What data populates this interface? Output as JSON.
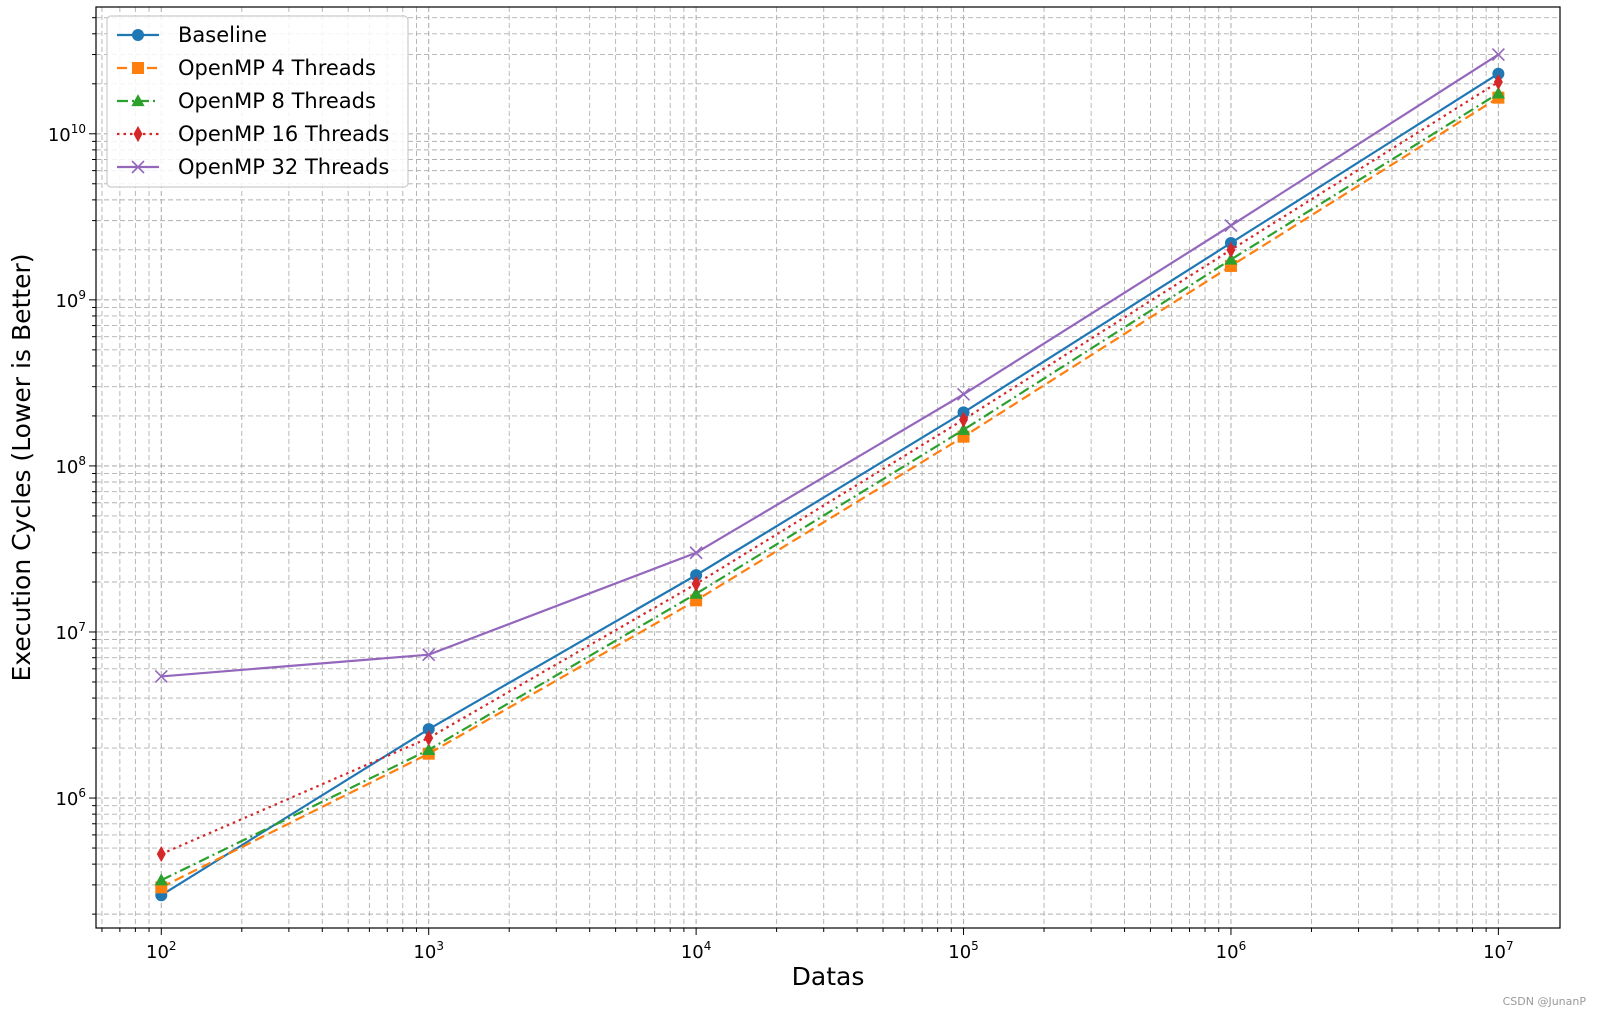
{
  "chart_data": {
    "type": "line",
    "xscale": "log",
    "yscale": "log",
    "xlabel": "Datas",
    "ylabel": "Execution Cycles (Lower is Better)",
    "x": [
      100,
      1000,
      10000,
      100000,
      1000000,
      10000000
    ],
    "x_tick_labels": [
      {
        "base": "10",
        "exp": "2"
      },
      {
        "base": "10",
        "exp": "3"
      },
      {
        "base": "10",
        "exp": "4"
      },
      {
        "base": "10",
        "exp": "5"
      },
      {
        "base": "10",
        "exp": "6"
      },
      {
        "base": "10",
        "exp": "7"
      }
    ],
    "y_tick_labels": [
      {
        "value": 1000000,
        "base": "10",
        "exp": "6"
      },
      {
        "value": 10000000,
        "base": "10",
        "exp": "7"
      },
      {
        "value": 100000000,
        "base": "10",
        "exp": "8"
      },
      {
        "value": 1000000000,
        "base": "10",
        "exp": "9"
      },
      {
        "value": 10000000000,
        "base": "10",
        "exp": "10"
      }
    ],
    "xlim": [
      57,
      17000000
    ],
    "ylim": [
      165000,
      58000000000
    ],
    "grid": "both",
    "legend_position": "upper-left",
    "series": [
      {
        "name": "Baseline",
        "color": "#1f77b4",
        "marker": "circle",
        "dash": "solid",
        "values": [
          260000,
          2600000,
          22000000,
          210000000,
          2200000000,
          23000000000
        ]
      },
      {
        "name": "OpenMP 4 Threads",
        "color": "#ff7f0e",
        "marker": "square",
        "dash": "dashed",
        "values": [
          290000,
          1850000,
          15500000,
          150000000,
          1600000000,
          16500000000
        ]
      },
      {
        "name": "OpenMP 8 Threads",
        "color": "#2ca02c",
        "marker": "triangle",
        "dash": "dashdot",
        "values": [
          320000,
          1950000,
          17000000,
          165000000,
          1750000000,
          17500000000
        ]
      },
      {
        "name": "OpenMP 16 Threads",
        "color": "#d62728",
        "marker": "diamond",
        "dash": "dotted",
        "values": [
          460000,
          2300000,
          19500000,
          190000000,
          2000000000,
          20500000000
        ]
      },
      {
        "name": "OpenMP 32 Threads",
        "color": "#9467bd",
        "marker": "x",
        "dash": "solid",
        "values": [
          5400000,
          7300000,
          30000000,
          270000000,
          2800000000,
          30000000000
        ]
      }
    ]
  },
  "watermark": "CSDN @JunanP"
}
